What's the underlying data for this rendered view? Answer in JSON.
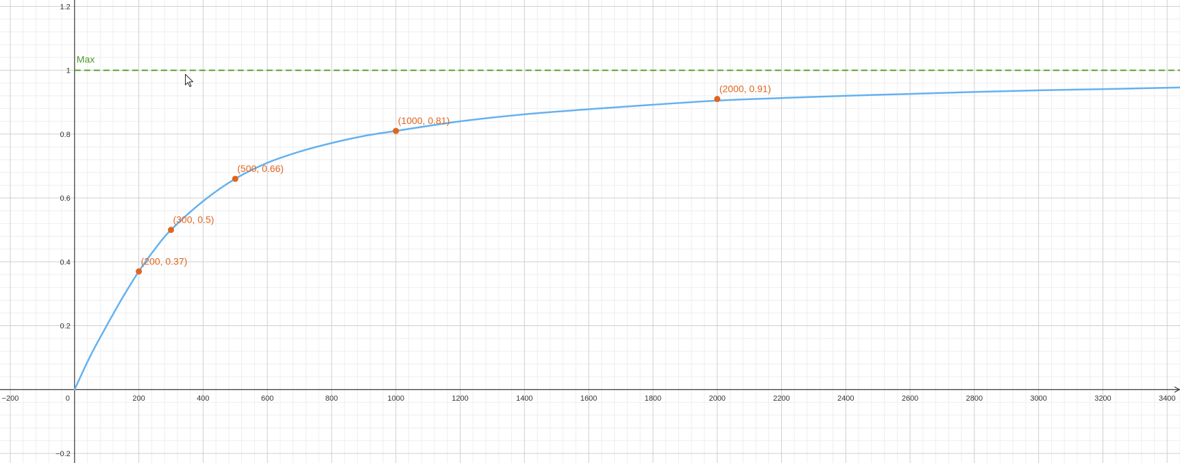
{
  "chart_data": {
    "type": "line",
    "title": "",
    "xlabel": "",
    "ylabel": "",
    "xlim": [
      -232,
      3440
    ],
    "ylim": [
      -0.23,
      1.22
    ],
    "grid": true,
    "x_ticks": [
      {
        "value": -200,
        "label": "−200"
      },
      {
        "value": 0,
        "label": "0"
      },
      {
        "value": 200,
        "label": "200"
      },
      {
        "value": 400,
        "label": "400"
      },
      {
        "value": 600,
        "label": "600"
      },
      {
        "value": 800,
        "label": "800"
      },
      {
        "value": 1000,
        "label": "1000"
      },
      {
        "value": 1200,
        "label": "1200"
      },
      {
        "value": 1400,
        "label": "1400"
      },
      {
        "value": 1600,
        "label": "1600"
      },
      {
        "value": 1800,
        "label": "1800"
      },
      {
        "value": 2000,
        "label": "2000"
      },
      {
        "value": 2200,
        "label": "2200"
      },
      {
        "value": 2400,
        "label": "2400"
      },
      {
        "value": 2600,
        "label": "2600"
      },
      {
        "value": 2800,
        "label": "2800"
      },
      {
        "value": 3000,
        "label": "3000"
      },
      {
        "value": 3200,
        "label": "3200"
      },
      {
        "value": 3400,
        "label": "3400"
      }
    ],
    "y_ticks": [
      {
        "value": -0.2,
        "label": "−0.2"
      },
      {
        "value": 0.2,
        "label": "0.2"
      },
      {
        "value": 0.4,
        "label": "0.4"
      },
      {
        "value": 0.6,
        "label": "0.6"
      },
      {
        "value": 0.8,
        "label": "0.8"
      },
      {
        "value": 1,
        "label": "1"
      },
      {
        "value": 1.2,
        "label": "1.2"
      }
    ],
    "series": [
      {
        "color": "#64b1f0",
        "x": [
          0,
          50,
          100,
          150,
          200,
          250,
          300,
          400,
          500,
          600,
          700,
          800,
          900,
          1000,
          1200,
          1400,
          1600,
          1800,
          2000,
          2200,
          2400,
          2600,
          2800,
          3000,
          3200,
          3440
        ],
        "y": [
          0,
          0.107,
          0.2,
          0.289,
          0.37,
          0.44,
          0.5,
          0.59,
          0.66,
          0.71,
          0.745,
          0.772,
          0.794,
          0.81,
          0.84,
          0.862,
          0.878,
          0.892,
          0.905,
          0.913,
          0.92,
          0.926,
          0.932,
          0.937,
          0.941,
          0.946
        ]
      }
    ],
    "points": [
      {
        "x": 200,
        "y": 0.37,
        "label": "(200, 0.37)"
      },
      {
        "x": 300,
        "y": 0.5,
        "label": "(300, 0.5)"
      },
      {
        "x": 500,
        "y": 0.66,
        "label": "(500, 0.66)"
      },
      {
        "x": 1000,
        "y": 0.81,
        "label": "(1000, 0.81)"
      },
      {
        "x": 2000,
        "y": 0.91,
        "label": "(2000, 0.91)"
      }
    ],
    "point_color": "#e0651f",
    "reference_line": {
      "y": 1,
      "label": "Max",
      "style": "dashed",
      "color": "#5aa02c"
    }
  }
}
